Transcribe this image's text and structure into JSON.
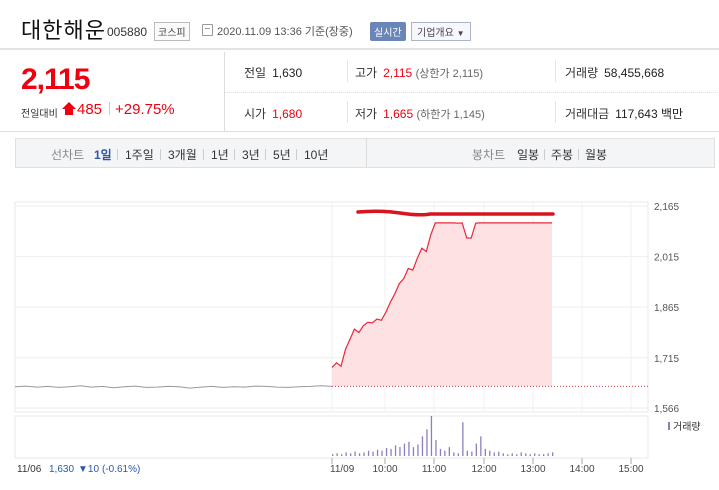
{
  "header": {
    "name": "대한해운",
    "code": "005880",
    "market": "코스피",
    "datetime": "2020.11.09 13:36 기준(장중)",
    "realtime": "실시간",
    "company_overview": "기업개요"
  },
  "summary": {
    "price": "2,115",
    "prev_day_label": "전일대비",
    "change_abs": "485",
    "change_pct": "+29.75%",
    "prev_close_label": "전일",
    "prev_close": "1,630",
    "high_label": "고가",
    "high": "2,115",
    "upper_limit": "(상한가 2,115)",
    "volume_label": "거래량",
    "volume": "58,455,668",
    "open_label": "시가",
    "open": "1,680",
    "low_label": "저가",
    "low": "1,665",
    "lower_limit": "(하한가 1,145)",
    "amount_label": "거래대금",
    "amount": "117,643 백만"
  },
  "toolbar": {
    "line_chart_label": "선차트",
    "periods": [
      "1일",
      "1주일",
      "3개월",
      "1년",
      "3년",
      "5년",
      "10년"
    ],
    "candle_chart_label": "봉차트",
    "candles": [
      "일봉",
      "주봉",
      "월봉"
    ]
  },
  "chart_data": {
    "type": "line",
    "yticks": [
      "2,165",
      "2,015",
      "1,865",
      "1,715",
      "1,566"
    ],
    "xticks": [
      "11/09",
      "10:00",
      "11:00",
      "12:00",
      "13:00",
      "14:00",
      "15:00"
    ],
    "prev_day": {
      "date": "11/06",
      "close": "1,630",
      "change": "▼10",
      "pct": "(-0.61%)"
    },
    "volume_legend": "거래량",
    "colors": {
      "line": "#e8283a",
      "fill": "#fde1e3",
      "prev": "#999999",
      "volume": "#8a7fc0",
      "annotation": "#d8141e"
    },
    "prev_series": [
      1629,
      1631,
      1628,
      1630,
      1627,
      1629,
      1632,
      1628,
      1630,
      1626,
      1629,
      1631,
      1627,
      1628,
      1630,
      1629,
      1625,
      1628,
      1630,
      1627,
      1629,
      1628,
      1631,
      1630,
      1628,
      1627,
      1629,
      1630,
      1632,
      1630
    ],
    "series": [
      1686,
      1700,
      1690,
      1740,
      1770,
      1800,
      1790,
      1810,
      1820,
      1818,
      1830,
      1826,
      1850,
      1880,
      1905,
      1935,
      1950,
      1980,
      1975,
      2010,
      2040,
      2030,
      2080,
      2115,
      2115,
      2115,
      2115,
      2115,
      2114,
      2115,
      2070,
      2070,
      2114,
      2115,
      2115,
      2115,
      2115,
      2115,
      2115,
      2115,
      2115,
      2115,
      2115,
      2115,
      2115,
      2115,
      2115,
      2115,
      2115,
      2115
    ],
    "volumes": [
      2,
      3,
      2,
      4,
      3,
      5,
      3,
      4,
      6,
      5,
      7,
      6,
      9,
      8,
      12,
      10,
      14,
      16,
      10,
      13,
      22,
      30,
      45,
      18,
      8,
      6,
      10,
      4,
      3,
      38,
      6,
      5,
      14,
      22,
      8,
      6,
      4,
      5,
      3,
      2,
      3,
      2,
      4,
      3,
      2,
      3,
      2,
      2,
      3,
      4
    ]
  }
}
